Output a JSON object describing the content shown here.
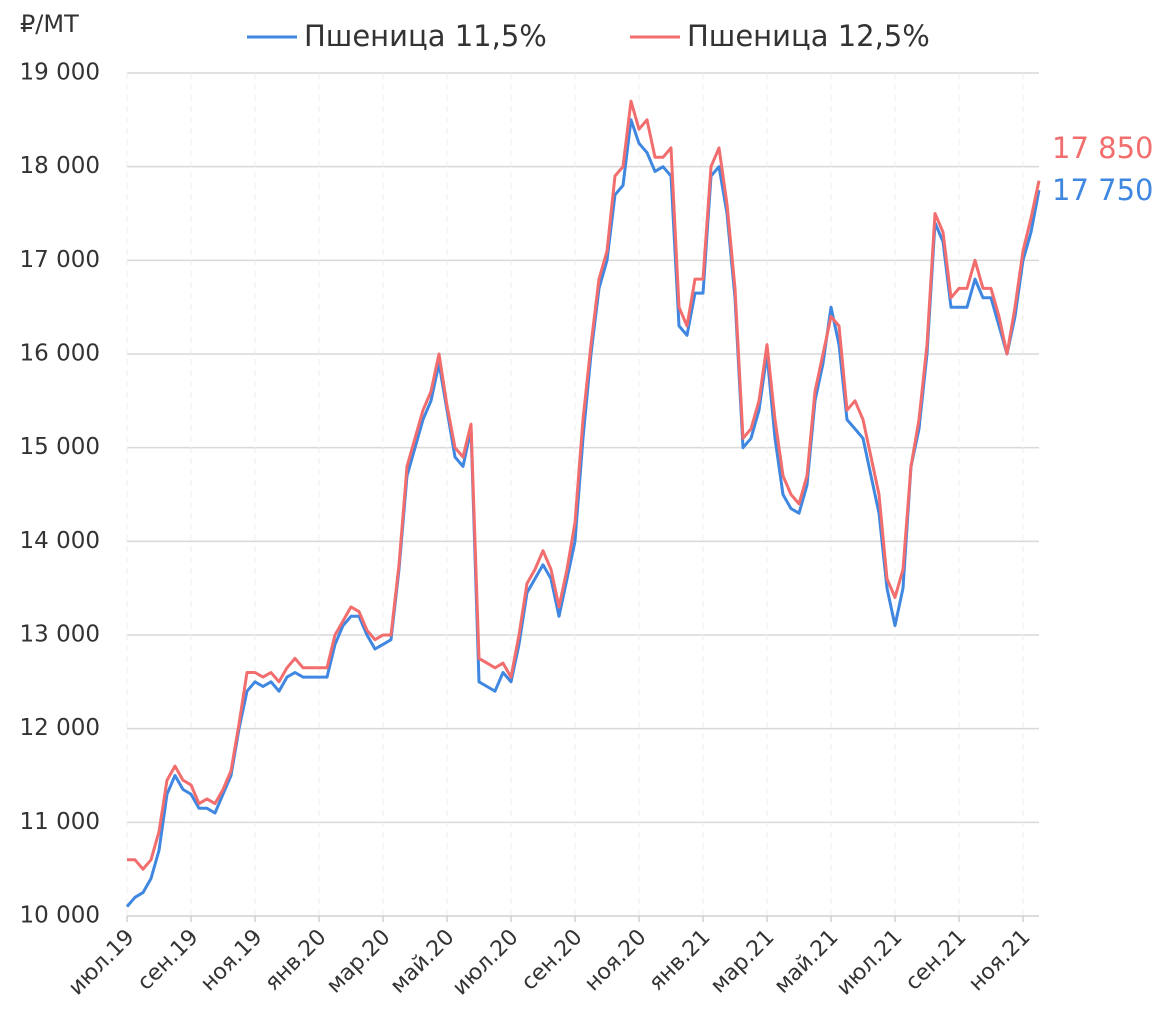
{
  "chart_data": {
    "type": "line",
    "y_label": "₽/МТ",
    "categories": [
      "июл.19",
      null,
      null,
      null,
      null,
      null,
      null,
      null,
      "сен.19",
      null,
      null,
      null,
      null,
      null,
      null,
      null,
      "ноя.19",
      null,
      null,
      null,
      null,
      null,
      null,
      null,
      "янв.20",
      null,
      null,
      null,
      null,
      null,
      null,
      null,
      "мар.20",
      null,
      null,
      null,
      null,
      null,
      null,
      null,
      "май.20",
      null,
      null,
      null,
      null,
      null,
      null,
      null,
      "июл.20",
      null,
      null,
      null,
      null,
      null,
      null,
      null,
      "сен.20",
      null,
      null,
      null,
      null,
      null,
      null,
      null,
      "ноя.20",
      null,
      null,
      null,
      null,
      null,
      null,
      null,
      "янв.21",
      null,
      null,
      null,
      null,
      null,
      null,
      null,
      "мар.21",
      null,
      null,
      null,
      null,
      null,
      null,
      null,
      "май.21",
      null,
      null,
      null,
      null,
      null,
      null,
      null,
      "июл.21",
      null,
      null,
      null,
      null,
      null,
      null,
      null,
      "сен.21",
      null,
      null,
      null,
      null,
      null,
      null,
      null,
      "ноя.21",
      null,
      null
    ],
    "series": [
      {
        "name": "Пшеница 11,5%",
        "color": "#3f87e0",
        "end_label": "17 750",
        "values": [
          10100,
          10200,
          10250,
          10400,
          10700,
          11300,
          11500,
          11350,
          11300,
          11150,
          11150,
          11100,
          11300,
          11500,
          12000,
          12400,
          12500,
          12450,
          12500,
          12400,
          12550,
          12600,
          12550,
          12550,
          12550,
          12550,
          12900,
          13100,
          13200,
          13200,
          13000,
          12850,
          12900,
          12950,
          13700,
          14700,
          15000,
          15300,
          15500,
          15900,
          15400,
          14900,
          14800,
          15200,
          12500,
          12450,
          12400,
          12600,
          12500,
          12900,
          13450,
          13600,
          13750,
          13600,
          13200,
          13600,
          14000,
          15100,
          16000,
          16700,
          17000,
          17700,
          17800,
          18500,
          18250,
          18150,
          17950,
          18000,
          17900,
          16300,
          16200,
          16650,
          16650,
          17900,
          18000,
          17500,
          16600,
          15000,
          15100,
          15400,
          16000,
          15100,
          14500,
          14350,
          14300,
          14600,
          15500,
          15900,
          16500,
          16100,
          15300,
          15200,
          15100,
          14700,
          14300,
          13500,
          13100,
          13500,
          14800,
          15200,
          16000,
          17400,
          17200,
          16500,
          16500,
          16500,
          16800,
          16600,
          16600,
          16300,
          16000,
          16400,
          17000,
          17300,
          17750
        ]
      },
      {
        "name": "Пшеница 12,5%",
        "color": "#f26d6d",
        "end_label": "17 850",
        "values": [
          10600,
          10600,
          10500,
          10600,
          10900,
          11450,
          11600,
          11450,
          11400,
          11200,
          11250,
          11200,
          11350,
          11550,
          12050,
          12600,
          12600,
          12550,
          12600,
          12500,
          12650,
          12750,
          12650,
          12650,
          12650,
          12650,
          13000,
          13150,
          13300,
          13250,
          13050,
          12950,
          13000,
          13000,
          13750,
          14800,
          15100,
          15400,
          15600,
          16000,
          15450,
          15000,
          14900,
          15250,
          12750,
          12700,
          12650,
          12700,
          12550,
          13000,
          13550,
          13700,
          13900,
          13700,
          13300,
          13700,
          14200,
          15300,
          16100,
          16800,
          17100,
          17900,
          18000,
          18700,
          18400,
          18500,
          18100,
          18100,
          18200,
          16500,
          16300,
          16800,
          16800,
          18000,
          18200,
          17600,
          16700,
          15100,
          15200,
          15500,
          16100,
          15300,
          14700,
          14500,
          14400,
          14700,
          15600,
          16000,
          16400,
          16300,
          15400,
          15500,
          15300,
          14900,
          14500,
          13600,
          13400,
          13700,
          14800,
          15300,
          16100,
          17500,
          17300,
          16600,
          16700,
          16700,
          17000,
          16700,
          16700,
          16400,
          16000,
          16500,
          17100,
          17450,
          17850
        ]
      }
    ],
    "ylim": [
      10000,
      19000
    ],
    "yticks": [
      {
        "value": 10000,
        "label": "10 000"
      },
      {
        "value": 11000,
        "label": "11 000"
      },
      {
        "value": 12000,
        "label": "12 000"
      },
      {
        "value": 13000,
        "label": "13 000"
      },
      {
        "value": 14000,
        "label": "14 000"
      },
      {
        "value": 15000,
        "label": "15 000"
      },
      {
        "value": 16000,
        "label": "16 000"
      },
      {
        "value": 17000,
        "label": "17 000"
      },
      {
        "value": 18000,
        "label": "18 000"
      },
      {
        "value": 19000,
        "label": "19 000"
      }
    ],
    "grid": true
  }
}
